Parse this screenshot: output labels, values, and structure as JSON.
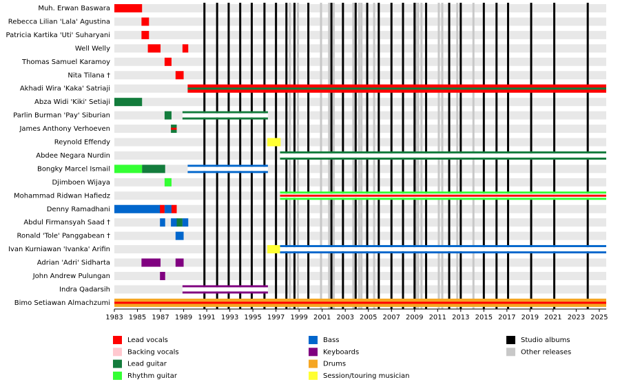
{
  "chart_data": {
    "type": "timeline",
    "xlim": [
      1983,
      2025.6
    ],
    "xticks": [
      1983,
      1985,
      1987,
      1989,
      1991,
      1993,
      1995,
      1997,
      1999,
      2001,
      2003,
      2005,
      2007,
      2009,
      2011,
      2013,
      2015,
      2017,
      2019,
      2021,
      2023,
      2025
    ],
    "roles": [
      {
        "name": "Lead vocals",
        "color": "#ff0000"
      },
      {
        "name": "Backing vocals",
        "color": "#ffc8cf"
      },
      {
        "name": "Lead guitar",
        "color": "#137c3c"
      },
      {
        "name": "Rhythm guitar",
        "color": "#33ff33"
      },
      {
        "name": "Bass",
        "color": "#0066cc"
      },
      {
        "name": "Keyboards",
        "color": "#800080"
      },
      {
        "name": "Drums",
        "color": "#f5a623"
      },
      {
        "name": "Session/touring musician",
        "color": "#ffff33"
      }
    ],
    "releases": [
      {
        "name": "Studio albums",
        "color": "#000000",
        "years": [
          1990.8,
          1991.9,
          1992.9,
          1993.9,
          1994.9,
          1996.0,
          1997.0,
          1997.9,
          1998.6,
          1999.8,
          2001.8,
          2002.8,
          2003.9,
          2004.9,
          2005.9,
          2007.0,
          2008.0,
          2009.0,
          2010.0,
          2012.0,
          2013.0,
          2015.0,
          2016.1,
          2017.1,
          2019.1,
          2021.1,
          2024.0
        ]
      },
      {
        "name": "Other releases",
        "color": "#c8c8c8",
        "years": [
          1998.2,
          1998.9,
          2000.9,
          2001.6,
          2002.0,
          2003.7,
          2004.2,
          2004.4,
          2005.5,
          2009.1,
          2009.3,
          2009.6,
          2011.1,
          2011.4,
          2012.7,
          2014.1
        ]
      }
    ],
    "members": [
      {
        "name": "Muh. Erwan Baswara",
        "segments": [
          {
            "start": 1983,
            "end": 1985.4,
            "role": 0
          }
        ]
      },
      {
        "name": "Rebecca Lilian 'Lala' Agustina",
        "segments": [
          {
            "start": 1985.35,
            "end": 1986.0,
            "role": 0
          }
        ]
      },
      {
        "name": "Patricia Kartika 'Uti' Suharyani",
        "segments": [
          {
            "start": 1985.35,
            "end": 1986.0,
            "role": 0
          }
        ]
      },
      {
        "name": "Well Welly",
        "segments": [
          {
            "start": 1985.9,
            "end": 1987.0,
            "role": 0
          },
          {
            "start": 1988.9,
            "end": 1989.4,
            "role": 0
          }
        ]
      },
      {
        "name": "Thomas Samuel Karamoy",
        "segments": [
          {
            "start": 1987.35,
            "end": 1987.95,
            "role": 0
          }
        ]
      },
      {
        "name": "Nita Tilana †",
        "segments": [
          {
            "start": 1988.3,
            "end": 1989.0,
            "role": 0
          }
        ]
      },
      {
        "name": "Akhadi Wira 'Kaka' Satriaji",
        "segments": [
          {
            "start": 1989.35,
            "end": 2025.6,
            "role": 0,
            "inner": 2
          }
        ]
      },
      {
        "name": "Abza Widi 'Kiki' Setiaji",
        "segments": [
          {
            "start": 1983,
            "end": 1985.4,
            "role": 2
          }
        ]
      },
      {
        "name": "Parlin Burman 'Pay' Siburian",
        "segments": [
          {
            "start": 1987.35,
            "end": 1987.95,
            "role": 2
          },
          {
            "start": 1988.9,
            "end": 1996.3,
            "role": 2,
            "hollow": true
          }
        ]
      },
      {
        "name": "James Anthony Verhoeven",
        "segments": [
          {
            "start": 1987.9,
            "end": 1988.4,
            "role": 2,
            "inner": 0
          }
        ]
      },
      {
        "name": "Reynold Effendy",
        "segments": [
          {
            "start": 1996.25,
            "end": 1997.4,
            "role": 7
          }
        ]
      },
      {
        "name": "Abdee Negara Nurdin",
        "segments": [
          {
            "start": 1997.35,
            "end": 2025.6,
            "role": 2,
            "hollow": true
          }
        ]
      },
      {
        "name": "Bongky Marcel Ismail",
        "segments": [
          {
            "start": 1983,
            "end": 1985.4,
            "role": 3
          },
          {
            "start": 1985.4,
            "end": 1987.4,
            "role": 2
          },
          {
            "start": 1989.35,
            "end": 1996.3,
            "role": 4,
            "hollow": true
          }
        ]
      },
      {
        "name": "Djimboen Wijaya",
        "segments": [
          {
            "start": 1987.35,
            "end": 1987.95,
            "role": 3
          }
        ]
      },
      {
        "name": "Mohammad Ridwan Hafiedz",
        "segments": [
          {
            "start": 1997.35,
            "end": 2025.6,
            "role": 3,
            "hollow": true,
            "inner": 0
          }
        ]
      },
      {
        "name": "Denny Ramadhani",
        "segments": [
          {
            "start": 1983,
            "end": 1987.0,
            "role": 4
          },
          {
            "start": 1986.95,
            "end": 1987.35,
            "role": 0
          },
          {
            "start": 1987.35,
            "end": 1987.95,
            "role": 4
          },
          {
            "start": 1987.95,
            "end": 1988.4,
            "role": 0
          }
        ]
      },
      {
        "name": "Abdul Firmansyah Saad †",
        "segments": [
          {
            "start": 1986.95,
            "end": 1987.4,
            "role": 4
          },
          {
            "start": 1987.9,
            "end": 1988.45,
            "role": 4
          },
          {
            "start": 1988.4,
            "end": 1988.9,
            "role": 2
          },
          {
            "start": 1988.9,
            "end": 1989.4,
            "role": 4
          }
        ]
      },
      {
        "name": "Ronald 'Tole' Panggabean †",
        "segments": [
          {
            "start": 1988.3,
            "end": 1989.0,
            "role": 4
          }
        ]
      },
      {
        "name": "Ivan Kurniawan 'Ivanka' Arifin",
        "segments": [
          {
            "start": 1996.25,
            "end": 1997.35,
            "role": 7
          },
          {
            "start": 1997.35,
            "end": 2025.6,
            "role": 4,
            "hollow": true
          }
        ]
      },
      {
        "name": "Adrian 'Adri' Sidharta",
        "segments": [
          {
            "start": 1985.35,
            "end": 1987.0,
            "role": 5
          },
          {
            "start": 1988.3,
            "end": 1989.0,
            "role": 5
          }
        ]
      },
      {
        "name": "John Andrew Pulungan",
        "segments": [
          {
            "start": 1986.95,
            "end": 1987.4,
            "role": 5
          }
        ]
      },
      {
        "name": "Indra Qadarsih",
        "segments": [
          {
            "start": 1988.9,
            "end": 1996.3,
            "role": 5,
            "hollow": true
          }
        ]
      },
      {
        "name": "Bimo Setiawan Almachzumi",
        "segments": [
          {
            "start": 1983,
            "end": 2025.6,
            "role": 6,
            "inner": 0
          }
        ]
      }
    ]
  }
}
